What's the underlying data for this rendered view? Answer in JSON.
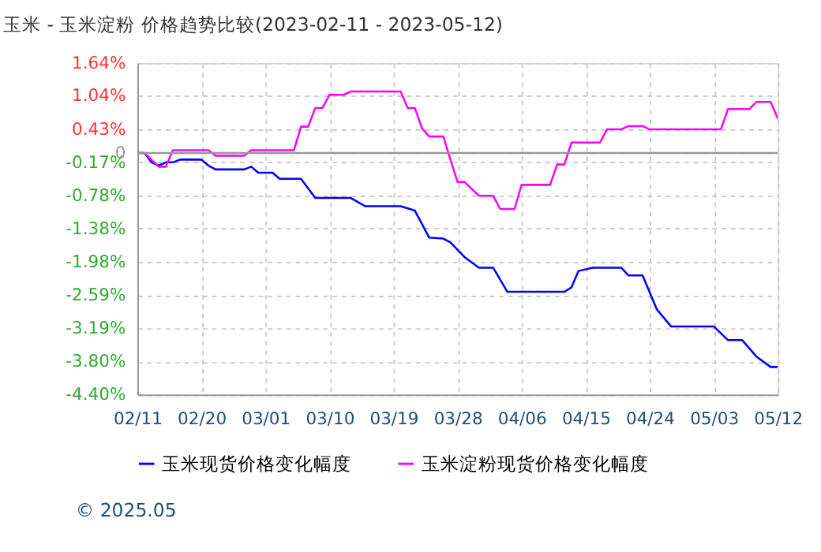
{
  "chart_data": {
    "type": "line",
    "title": "玉米 - 玉米淀粉 价格趋势比较(2023-02-11 - 2023-05-12)",
    "annotations": [
      "© 2025.05"
    ],
    "series": [
      {
        "name": "玉米现货价格变化幅度",
        "color": "#0000ff",
        "x": [
          "2023-02-11",
          "2023-02-12",
          "2023-02-13",
          "2023-02-14",
          "2023-02-15",
          "2023-02-16",
          "2023-02-17",
          "2023-02-20",
          "2023-02-21",
          "2023-02-22",
          "2023-02-26",
          "2023-02-27",
          "2023-02-28",
          "2023-03-02",
          "2023-03-03",
          "2023-03-06",
          "2023-03-08",
          "2023-03-13",
          "2023-03-15",
          "2023-03-20",
          "2023-03-22",
          "2023-03-24",
          "2023-03-26",
          "2023-03-27",
          "2023-03-29",
          "2023-03-31",
          "2023-04-02",
          "2023-04-04",
          "2023-04-12",
          "2023-04-13",
          "2023-04-14",
          "2023-04-16",
          "2023-04-20",
          "2023-04-21",
          "2023-04-23",
          "2023-04-25",
          "2023-04-27",
          "2023-05-03",
          "2023-05-05",
          "2023-05-07",
          "2023-05-09",
          "2023-05-11",
          "2023-05-12"
        ],
        "values": [
          0,
          0,
          -0.17,
          -0.23,
          -0.17,
          -0.17,
          -0.12,
          -0.12,
          -0.23,
          -0.3,
          -0.3,
          -0.25,
          -0.36,
          -0.36,
          -0.47,
          -0.47,
          -0.82,
          -0.82,
          -0.97,
          -0.97,
          -1.05,
          -1.54,
          -1.56,
          -1.63,
          -1.9,
          -2.09,
          -2.09,
          -2.53,
          -2.53,
          -2.45,
          -2.15,
          -2.09,
          -2.09,
          -2.23,
          -2.23,
          -2.85,
          -3.16,
          -3.16,
          -3.41,
          -3.41,
          -3.71,
          -3.9,
          -3.9
        ]
      },
      {
        "name": "玉米淀粉现货价格变化幅度",
        "color": "#ff00ff",
        "x": [
          "2023-02-11",
          "2023-02-12",
          "2023-02-14",
          "2023-02-15",
          "2023-02-16",
          "2023-02-21",
          "2023-02-22",
          "2023-02-26",
          "2023-02-27",
          "2023-03-05",
          "2023-03-06",
          "2023-03-07",
          "2023-03-08",
          "2023-03-09",
          "2023-03-10",
          "2023-03-12",
          "2023-03-13",
          "2023-03-20",
          "2023-03-21",
          "2023-03-22",
          "2023-03-23",
          "2023-03-24",
          "2023-03-26",
          "2023-03-27",
          "2023-03-28",
          "2023-03-29",
          "2023-03-31",
          "2023-04-02",
          "2023-04-03",
          "2023-04-05",
          "2023-04-06",
          "2023-04-10",
          "2023-04-11",
          "2023-04-12",
          "2023-04-13",
          "2023-04-17",
          "2023-04-18",
          "2023-04-20",
          "2023-04-21",
          "2023-04-23",
          "2023-04-24",
          "2023-05-04",
          "2023-05-05",
          "2023-05-08",
          "2023-05-09",
          "2023-05-11",
          "2023-05-12"
        ],
        "values": [
          0,
          0,
          -0.25,
          -0.25,
          0.05,
          0.05,
          -0.05,
          -0.05,
          0.05,
          0.05,
          0.48,
          0.48,
          0.82,
          0.82,
          1.06,
          1.06,
          1.12,
          1.12,
          0.82,
          0.82,
          0.45,
          0.3,
          0.3,
          -0.12,
          -0.53,
          -0.53,
          -0.78,
          -0.78,
          -1.02,
          -1.02,
          -0.58,
          -0.58,
          -0.21,
          -0.21,
          0.19,
          0.19,
          0.43,
          0.43,
          0.49,
          0.49,
          0.43,
          0.43,
          0.8,
          0.8,
          0.93,
          0.93,
          0.63
        ]
      }
    ],
    "xlim": [
      "2023-02-11",
      "2023-05-12"
    ],
    "xticks": [
      {
        "value": "2023-02-11",
        "label": "02/11"
      },
      {
        "value": "2023-02-20",
        "label": "02/20"
      },
      {
        "value": "2023-03-01",
        "label": "03/01"
      },
      {
        "value": "2023-03-10",
        "label": "03/10"
      },
      {
        "value": "2023-03-19",
        "label": "03/19"
      },
      {
        "value": "2023-03-28",
        "label": "03/28"
      },
      {
        "value": "2023-04-06",
        "label": "04/06"
      },
      {
        "value": "2023-04-15",
        "label": "04/15"
      },
      {
        "value": "2023-04-24",
        "label": "04/24"
      },
      {
        "value": "2023-05-03",
        "label": "05/03"
      },
      {
        "value": "2023-05-12",
        "label": "05/12"
      }
    ],
    "ylim": [
      -4.4,
      1.64
    ],
    "yticks": [
      {
        "value": 1.64,
        "label": "1.64%"
      },
      {
        "value": 1.04,
        "label": "1.04%"
      },
      {
        "value": 0.43,
        "label": "0.43%"
      },
      0,
      {
        "value": -0.17,
        "label": "-0.17%"
      },
      {
        "value": -0.78,
        "label": "-0.78%"
      },
      {
        "value": -1.38,
        "label": "-1.38%"
      },
      {
        "value": -1.98,
        "label": "-1.98%"
      },
      {
        "value": -2.59,
        "label": "-2.59%"
      },
      {
        "value": -3.19,
        "label": "-3.19%"
      },
      {
        "value": -3.8,
        "label": "-3.80%"
      },
      {
        "value": -4.4,
        "label": "-4.40%"
      }
    ],
    "ref_lines": [
      {
        "axis": "y",
        "value": 0,
        "color": "#999999"
      }
    ],
    "grid": true,
    "legend": "bottom",
    "marker": "none",
    "line_style": "solid"
  }
}
